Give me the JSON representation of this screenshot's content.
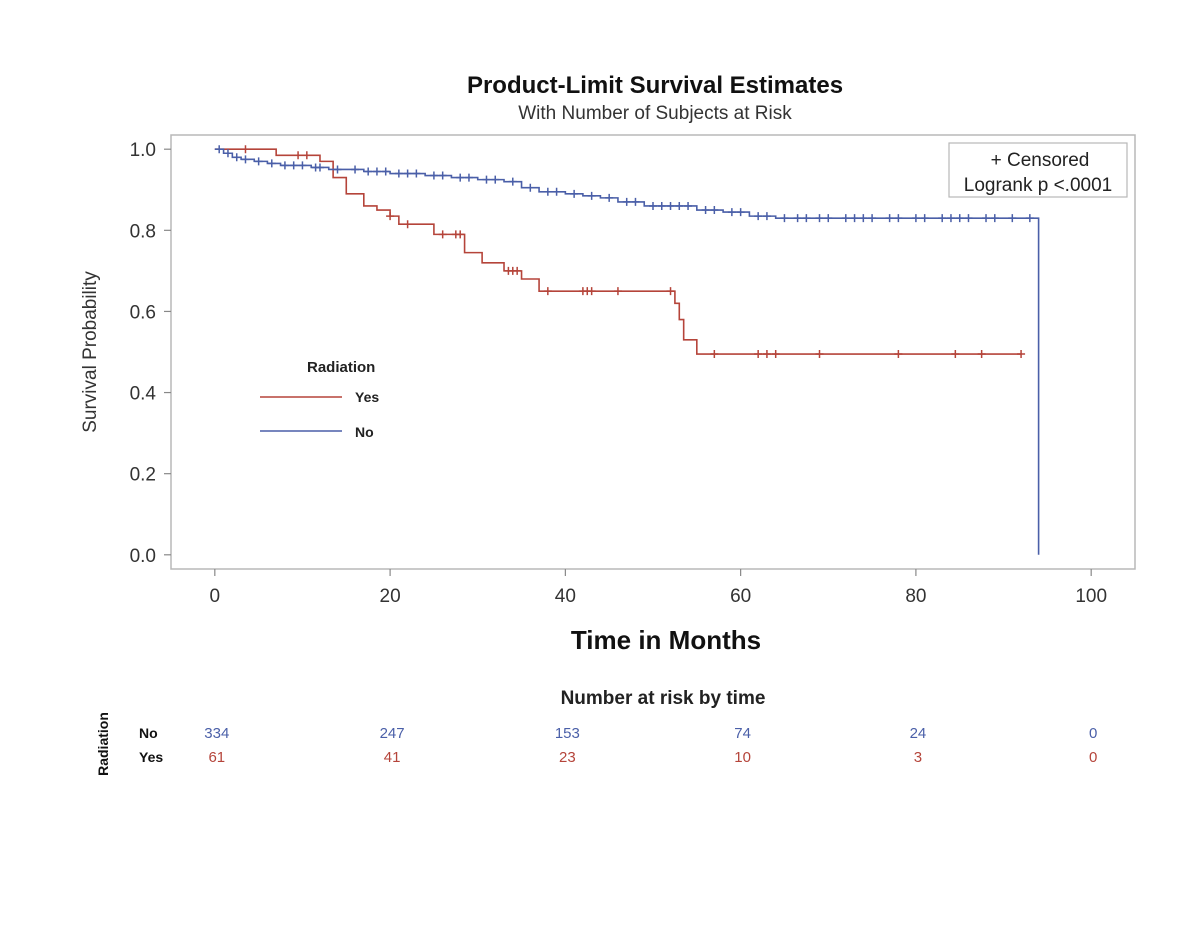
{
  "colors": {
    "yes": "#b5443a",
    "no": "#4a5fa8",
    "frame": "#b8b8b8",
    "text": "#222222"
  },
  "chart_data": {
    "type": "line",
    "title": "Product-Limit Survival Estimates",
    "subtitle": "With Number of Subjects at Risk",
    "xlabel": "Time in Months",
    "ylabel": "Survival Probability",
    "xlim": [
      -5,
      105
    ],
    "ylim": [
      -0.035,
      1.035
    ],
    "xticks": [
      0,
      20,
      40,
      60,
      80,
      100
    ],
    "xtick_labels": [
      "0",
      "20",
      "40",
      "60",
      "80",
      "100"
    ],
    "yticks": [
      0.0,
      0.2,
      0.4,
      0.6,
      0.8,
      1.0
    ],
    "ytick_labels": [
      "0.0",
      "0.2",
      "0.4",
      "0.6",
      "0.8",
      "1.0"
    ],
    "inset_legend": [
      "+ Censored",
      "Logrank p <.0001"
    ],
    "group_legend": {
      "title": "Radiation",
      "items": [
        "Yes",
        "No"
      ]
    },
    "series": [
      {
        "name": "Yes",
        "step": [
          [
            0,
            1.0
          ],
          [
            7,
            0.985
          ],
          [
            12,
            0.97
          ],
          [
            13.5,
            0.93
          ],
          [
            15,
            0.89
          ],
          [
            17,
            0.86
          ],
          [
            18.5,
            0.85
          ],
          [
            20,
            0.835
          ],
          [
            21,
            0.815
          ],
          [
            25,
            0.79
          ],
          [
            28.5,
            0.745
          ],
          [
            30.5,
            0.72
          ],
          [
            33,
            0.7
          ],
          [
            35,
            0.68
          ],
          [
            37,
            0.65
          ],
          [
            52.5,
            0.62
          ],
          [
            53,
            0.58
          ],
          [
            53.5,
            0.53
          ],
          [
            55,
            0.495
          ],
          [
            92,
            0.495
          ]
        ],
        "censored": [
          [
            3.5,
            1.0
          ],
          [
            9.5,
            0.985
          ],
          [
            10.5,
            0.985
          ],
          [
            20,
            0.835
          ],
          [
            22,
            0.815
          ],
          [
            26,
            0.79
          ],
          [
            27.5,
            0.79
          ],
          [
            28,
            0.79
          ],
          [
            33.5,
            0.7
          ],
          [
            34,
            0.7
          ],
          [
            34.5,
            0.7
          ],
          [
            38,
            0.65
          ],
          [
            42,
            0.65
          ],
          [
            42.5,
            0.65
          ],
          [
            43,
            0.65
          ],
          [
            46,
            0.65
          ],
          [
            52,
            0.65
          ],
          [
            57,
            0.495
          ],
          [
            62,
            0.495
          ],
          [
            63,
            0.495
          ],
          [
            64,
            0.495
          ],
          [
            69,
            0.495
          ],
          [
            78,
            0.495
          ],
          [
            84.5,
            0.495
          ],
          [
            87.5,
            0.495
          ],
          [
            92,
            0.495
          ]
        ]
      },
      {
        "name": "No",
        "step": [
          [
            0,
            1.0
          ],
          [
            1,
            0.99
          ],
          [
            2,
            0.98
          ],
          [
            3,
            0.975
          ],
          [
            4.5,
            0.97
          ],
          [
            6,
            0.965
          ],
          [
            7.5,
            0.96
          ],
          [
            11,
            0.955
          ],
          [
            13,
            0.95
          ],
          [
            17,
            0.945
          ],
          [
            20,
            0.94
          ],
          [
            24,
            0.935
          ],
          [
            27,
            0.93
          ],
          [
            30,
            0.925
          ],
          [
            33,
            0.92
          ],
          [
            35,
            0.905
          ],
          [
            37,
            0.895
          ],
          [
            40,
            0.89
          ],
          [
            42,
            0.885
          ],
          [
            44,
            0.88
          ],
          [
            46,
            0.87
          ],
          [
            49,
            0.86
          ],
          [
            55,
            0.85
          ],
          [
            58,
            0.845
          ],
          [
            61,
            0.835
          ],
          [
            64,
            0.83
          ],
          [
            94,
            0.83
          ],
          [
            94,
            0.0
          ]
        ],
        "censored": [
          [
            0.5,
            1.0
          ],
          [
            1.5,
            0.99
          ],
          [
            2.5,
            0.98
          ],
          [
            3.5,
            0.975
          ],
          [
            5,
            0.97
          ],
          [
            6.5,
            0.965
          ],
          [
            8,
            0.96
          ],
          [
            9,
            0.96
          ],
          [
            10,
            0.96
          ],
          [
            11.5,
            0.955
          ],
          [
            12,
            0.955
          ],
          [
            14,
            0.95
          ],
          [
            16,
            0.95
          ],
          [
            17.5,
            0.945
          ],
          [
            18.5,
            0.945
          ],
          [
            19.5,
            0.945
          ],
          [
            21,
            0.94
          ],
          [
            22,
            0.94
          ],
          [
            23,
            0.94
          ],
          [
            25,
            0.935
          ],
          [
            26,
            0.935
          ],
          [
            28,
            0.93
          ],
          [
            29,
            0.93
          ],
          [
            31,
            0.925
          ],
          [
            32,
            0.925
          ],
          [
            34,
            0.92
          ],
          [
            36,
            0.905
          ],
          [
            38,
            0.895
          ],
          [
            39,
            0.895
          ],
          [
            41,
            0.89
          ],
          [
            43,
            0.885
          ],
          [
            45,
            0.88
          ],
          [
            47,
            0.87
          ],
          [
            48,
            0.87
          ],
          [
            50,
            0.86
          ],
          [
            51,
            0.86
          ],
          [
            52,
            0.86
          ],
          [
            53,
            0.86
          ],
          [
            54,
            0.86
          ],
          [
            56,
            0.85
          ],
          [
            57,
            0.85
          ],
          [
            59,
            0.845
          ],
          [
            60,
            0.845
          ],
          [
            62,
            0.835
          ],
          [
            63,
            0.835
          ],
          [
            65,
            0.83
          ],
          [
            66.5,
            0.83
          ],
          [
            67.5,
            0.83
          ],
          [
            69,
            0.83
          ],
          [
            70,
            0.83
          ],
          [
            72,
            0.83
          ],
          [
            73,
            0.83
          ],
          [
            74,
            0.83
          ],
          [
            75,
            0.83
          ],
          [
            77,
            0.83
          ],
          [
            78,
            0.83
          ],
          [
            80,
            0.83
          ],
          [
            81,
            0.83
          ],
          [
            83,
            0.83
          ],
          [
            84,
            0.83
          ],
          [
            85,
            0.83
          ],
          [
            86,
            0.83
          ],
          [
            88,
            0.83
          ],
          [
            89,
            0.83
          ],
          [
            91,
            0.83
          ],
          [
            93,
            0.83
          ]
        ]
      }
    ],
    "risk_table": {
      "title": "Number at risk by time",
      "group_label": "Radiation",
      "times": [
        0,
        20,
        40,
        60,
        80,
        100
      ],
      "rows": [
        {
          "name": "No",
          "values": [
            "334",
            "247",
            "153",
            "74",
            "24",
            "0"
          ]
        },
        {
          "name": "Yes",
          "values": [
            "61",
            "41",
            "23",
            "10",
            "3",
            "0"
          ]
        }
      ]
    }
  }
}
